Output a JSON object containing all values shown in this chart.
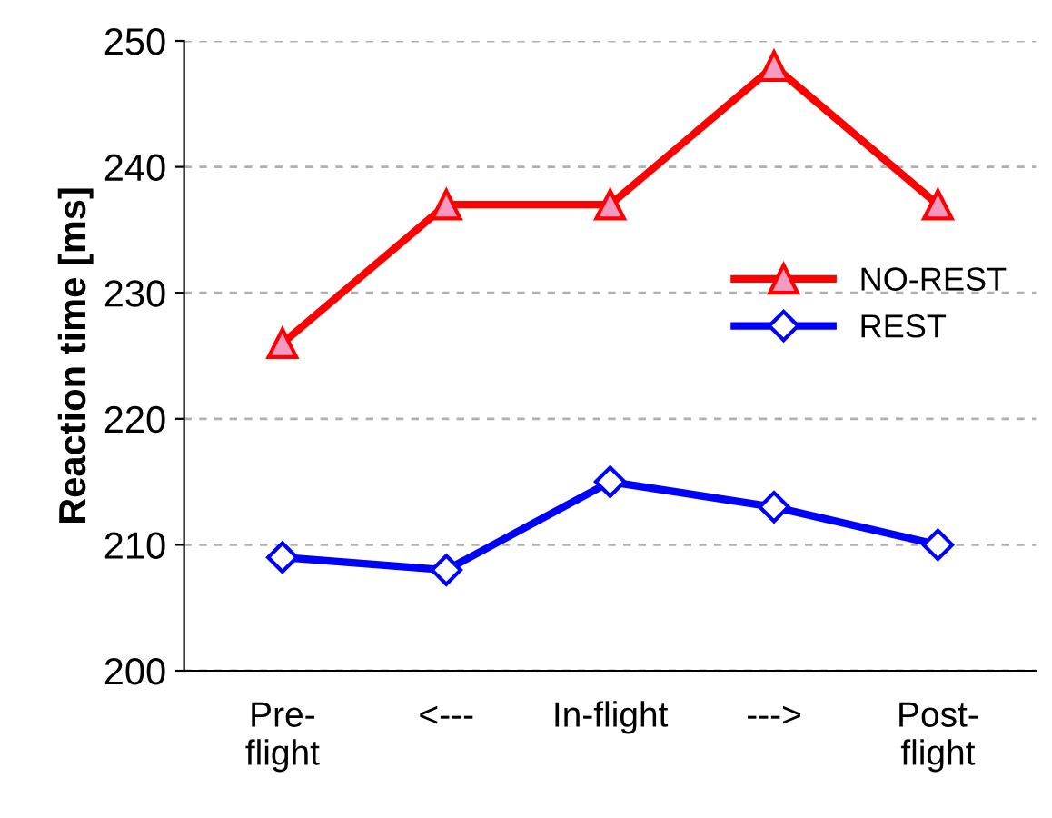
{
  "chart_data": {
    "type": "line",
    "ylabel": "Reaction time [ms]",
    "categories": [
      "Pre-\nflight",
      "<---",
      "In-flight",
      "--->",
      "Post-\nflight"
    ],
    "series": [
      {
        "name": "NO-REST",
        "color": "#ff0000",
        "marker": "triangle",
        "values": [
          226,
          237,
          237,
          248,
          237
        ]
      },
      {
        "name": "REST",
        "color": "#0000ff",
        "marker": "diamond",
        "values": [
          209,
          208,
          215,
          213,
          210
        ]
      }
    ],
    "ylim": [
      200,
      250
    ],
    "yticks": [
      200,
      210,
      220,
      230,
      240,
      250
    ],
    "grid": "y",
    "legend": "right",
    "line_style": "solid"
  }
}
